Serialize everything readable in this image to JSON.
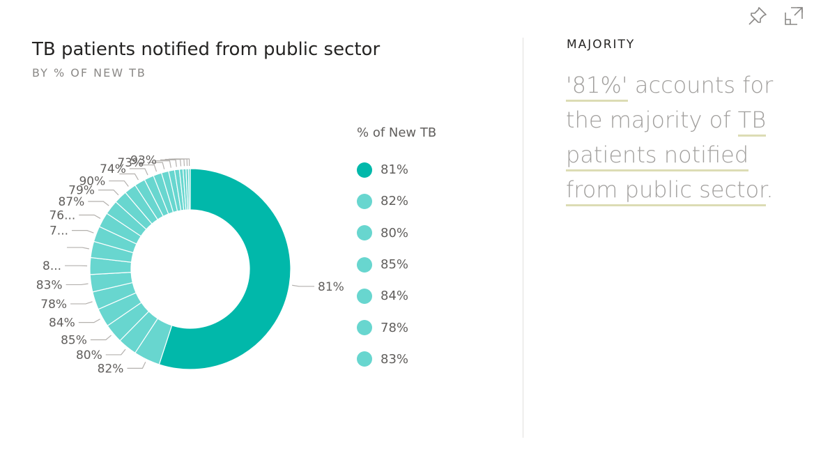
{
  "visual": {
    "title": "TB patients notified from public sector",
    "subtitle": "BY % OF NEW TB"
  },
  "toolbar": {
    "pin_icon": "pin-icon",
    "focus_icon": "focus-mode-icon"
  },
  "colors": {
    "primary": "#01b8aa",
    "secondary": "#68d6cf",
    "leader": "#b3b0ad",
    "label": "#605e5c"
  },
  "chart_data": {
    "type": "pie",
    "variant": "donut",
    "legend_title": "% of New TB",
    "legend_placement": "right",
    "legend": [
      "81%",
      "82%",
      "80%",
      "85%",
      "84%",
      "78%",
      "83%"
    ],
    "slices": [
      {
        "label": "81%",
        "value": 57.0
      },
      {
        "label": "82%",
        "value": 4.4
      },
      {
        "label": "80%",
        "value": 3.2
      },
      {
        "label": "85%",
        "value": 3.2
      },
      {
        "label": "84%",
        "value": 3.1
      },
      {
        "label": "78%",
        "value": 3.0
      },
      {
        "label": "83%",
        "value": 2.9
      },
      {
        "label": "8...",
        "value": 2.8
      },
      {
        "label": "",
        "value": 2.7
      },
      {
        "label": "7...",
        "value": 2.6
      },
      {
        "label": "76...",
        "value": 2.5
      },
      {
        "label": "87%",
        "value": 2.4
      },
      {
        "label": "79%",
        "value": 2.2
      },
      {
        "label": "90%",
        "value": 2.0
      },
      {
        "label": "",
        "value": 1.8
      },
      {
        "label": "74%",
        "value": 1.6
      },
      {
        "label": "",
        "value": 1.4
      },
      {
        "label": "73%",
        "value": 1.2
      },
      {
        "label": "",
        "value": 1.0
      },
      {
        "label": "93%",
        "value": 0.8
      },
      {
        "label": "",
        "value": 0.6
      },
      {
        "label": "",
        "value": 0.5
      },
      {
        "label": "",
        "value": 0.4
      },
      {
        "label": "",
        "value": 0.3
      }
    ]
  },
  "smart_narrative": {
    "heading": "MAJORITY",
    "value": "'81%'",
    "text1": " accounts for the majority of ",
    "field1": "TB",
    "space": " ",
    "field2": "patients notified",
    "space2": " ",
    "field3": "from public sector",
    "end": "."
  }
}
